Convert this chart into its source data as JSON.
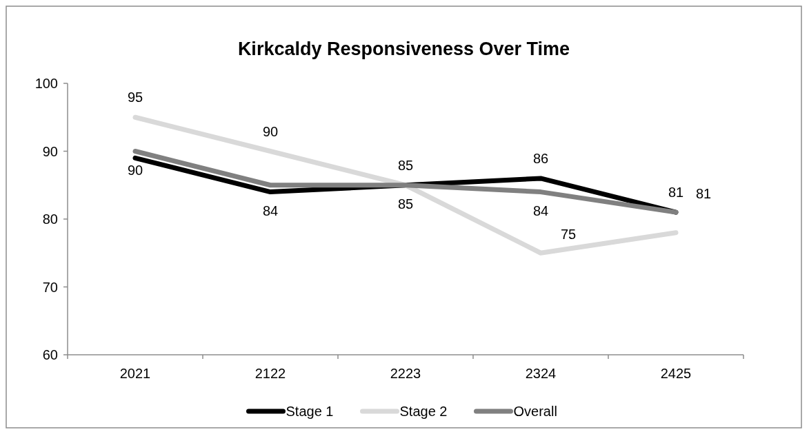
{
  "chart_data": {
    "type": "line",
    "title": "Kirkcaldy Responsiveness Over Time",
    "categories": [
      "2021",
      "2122",
      "2223",
      "2324",
      "2425"
    ],
    "ylim": [
      60,
      100
    ],
    "yticks": [
      60,
      70,
      80,
      90,
      100
    ],
    "grid": false,
    "legend": "bottom",
    "series": [
      {
        "name": "Stage 1",
        "color": "#000000",
        "values": [
          89,
          84,
          85,
          86,
          81
        ],
        "value_labels": [
          null,
          "84",
          "85",
          "86",
          "81"
        ]
      },
      {
        "name": "Stage 2",
        "color": "#d9d9d9",
        "values": [
          95,
          90,
          85,
          75,
          78
        ],
        "value_labels": [
          "95",
          "90",
          null,
          "75",
          null
        ]
      },
      {
        "name": "Overall",
        "color": "#808080",
        "values": [
          90,
          85,
          85,
          84,
          81
        ],
        "value_labels": [
          "90",
          null,
          "85",
          "84",
          "81"
        ]
      }
    ]
  }
}
